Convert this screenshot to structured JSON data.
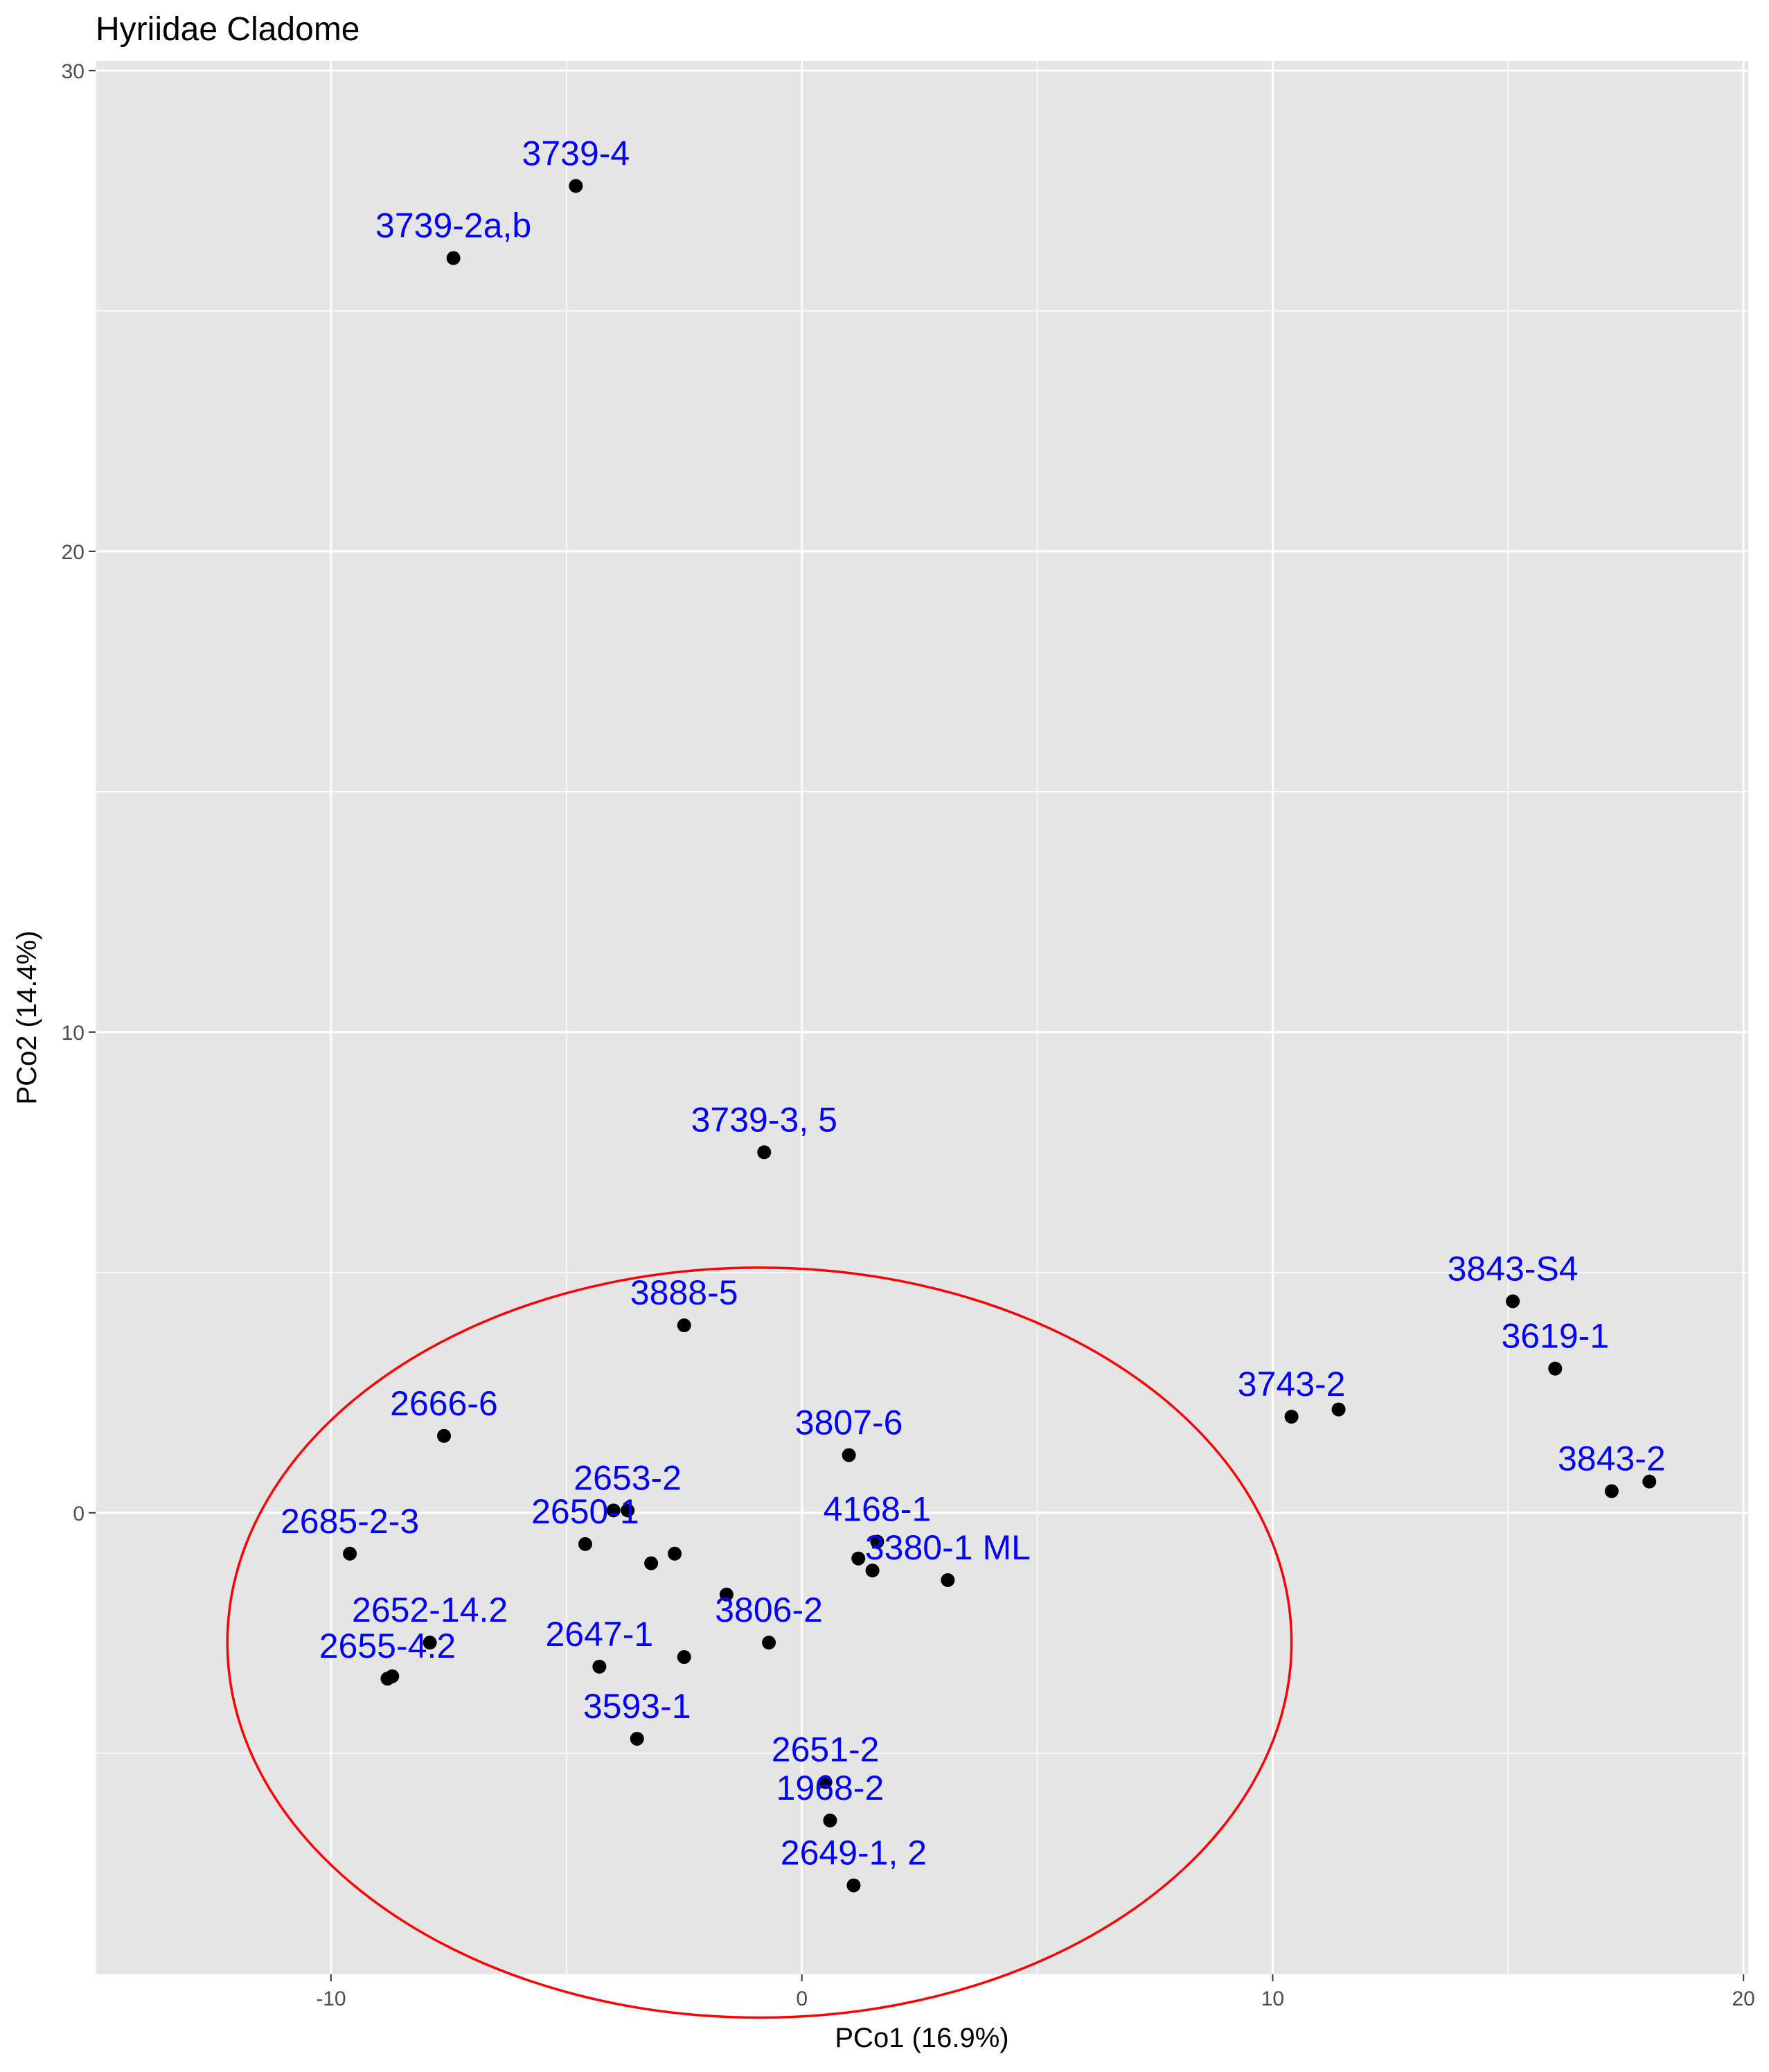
{
  "chart_data": {
    "type": "scatter",
    "title": "Hyriidae Cladome",
    "xlabel": "PCo1 (16.9%)",
    "ylabel": "PCo2 (14.4%)",
    "xlim": [
      -15,
      20.1
    ],
    "ylim": [
      -9.6,
      30.2
    ],
    "x_ticks": [
      -10,
      0,
      10,
      20
    ],
    "y_ticks": [
      0,
      10,
      20,
      30
    ],
    "x_tick_labels": [
      "-10",
      "0",
      "10",
      "20"
    ],
    "y_tick_labels": [
      "0",
      "10",
      "20",
      "30"
    ],
    "grid": true,
    "legend": "none",
    "colors": {
      "panel": "#e5e5e5",
      "grid": "#ffffff",
      "point": "#000000",
      "label": "#0000ff",
      "ellipse": "#ff0000"
    },
    "labeled_points": [
      {
        "label": "3739-4",
        "x": -4.8,
        "y": 27.6
      },
      {
        "label": "3739-2a,b",
        "x": -7.4,
        "y": 26.1
      },
      {
        "label": "3739-3, 5",
        "x": -0.8,
        "y": 7.5
      },
      {
        "label": "3888-5",
        "x": -2.5,
        "y": 3.9
      },
      {
        "label": "3843-S4",
        "x": 15.1,
        "y": 4.4
      },
      {
        "label": "3619-1",
        "x": 16.0,
        "y": 3.0
      },
      {
        "label": "3743-2",
        "x": 10.4,
        "y": 2.0
      },
      {
        "label": "2666-6",
        "x": -7.6,
        "y": 1.6
      },
      {
        "label": "3807-6",
        "x": 1.0,
        "y": 1.2
      },
      {
        "label": "3843-2",
        "x": 17.2,
        "y": 0.45
      },
      {
        "label": "2653-2",
        "x": -3.7,
        "y": 0.05
      },
      {
        "label": "2650-1",
        "x": -4.6,
        "y": -0.65
      },
      {
        "label": "2685-2-3",
        "x": -9.6,
        "y": -0.85
      },
      {
        "label": "4168-1",
        "x": 1.6,
        "y": -0.6
      },
      {
        "label": "3380-1 ML",
        "x": 3.1,
        "y": -1.4
      },
      {
        "label": "3806-2",
        "x": -0.7,
        "y": -2.7
      },
      {
        "label": "2647-1",
        "x": -4.3,
        "y": -3.2
      },
      {
        "label": "2652-14.2",
        "x": -7.9,
        "y": -2.7
      },
      {
        "label": "2655-4.2",
        "x": -8.8,
        "y": -3.45
      },
      {
        "label": "3593-1",
        "x": -3.5,
        "y": -4.7
      },
      {
        "label": "2651-2",
        "x": 0.5,
        "y": -5.6
      },
      {
        "label": "1968-2",
        "x": 0.6,
        "y": -6.4
      },
      {
        "label": "2649-1, 2",
        "x": 1.1,
        "y": -7.75
      }
    ],
    "unlabeled_points": [
      {
        "x": 18.0,
        "y": 0.65
      },
      {
        "x": 11.4,
        "y": 2.15
      },
      {
        "x": -4.0,
        "y": 0.05
      },
      {
        "x": -2.7,
        "y": -0.85
      },
      {
        "x": -3.2,
        "y": -1.05
      },
      {
        "x": 1.2,
        "y": -0.95
      },
      {
        "x": 1.5,
        "y": -1.2
      },
      {
        "x": -1.6,
        "y": -1.7
      },
      {
        "x": -2.5,
        "y": -3.0
      },
      {
        "x": -8.7,
        "y": -3.4
      }
    ],
    "ellipse": {
      "center": [
        -0.9,
        -2.7
      ],
      "semi_axis_x": 11.3,
      "semi_axis_y": 7.8,
      "rotation_deg": 0
    }
  }
}
